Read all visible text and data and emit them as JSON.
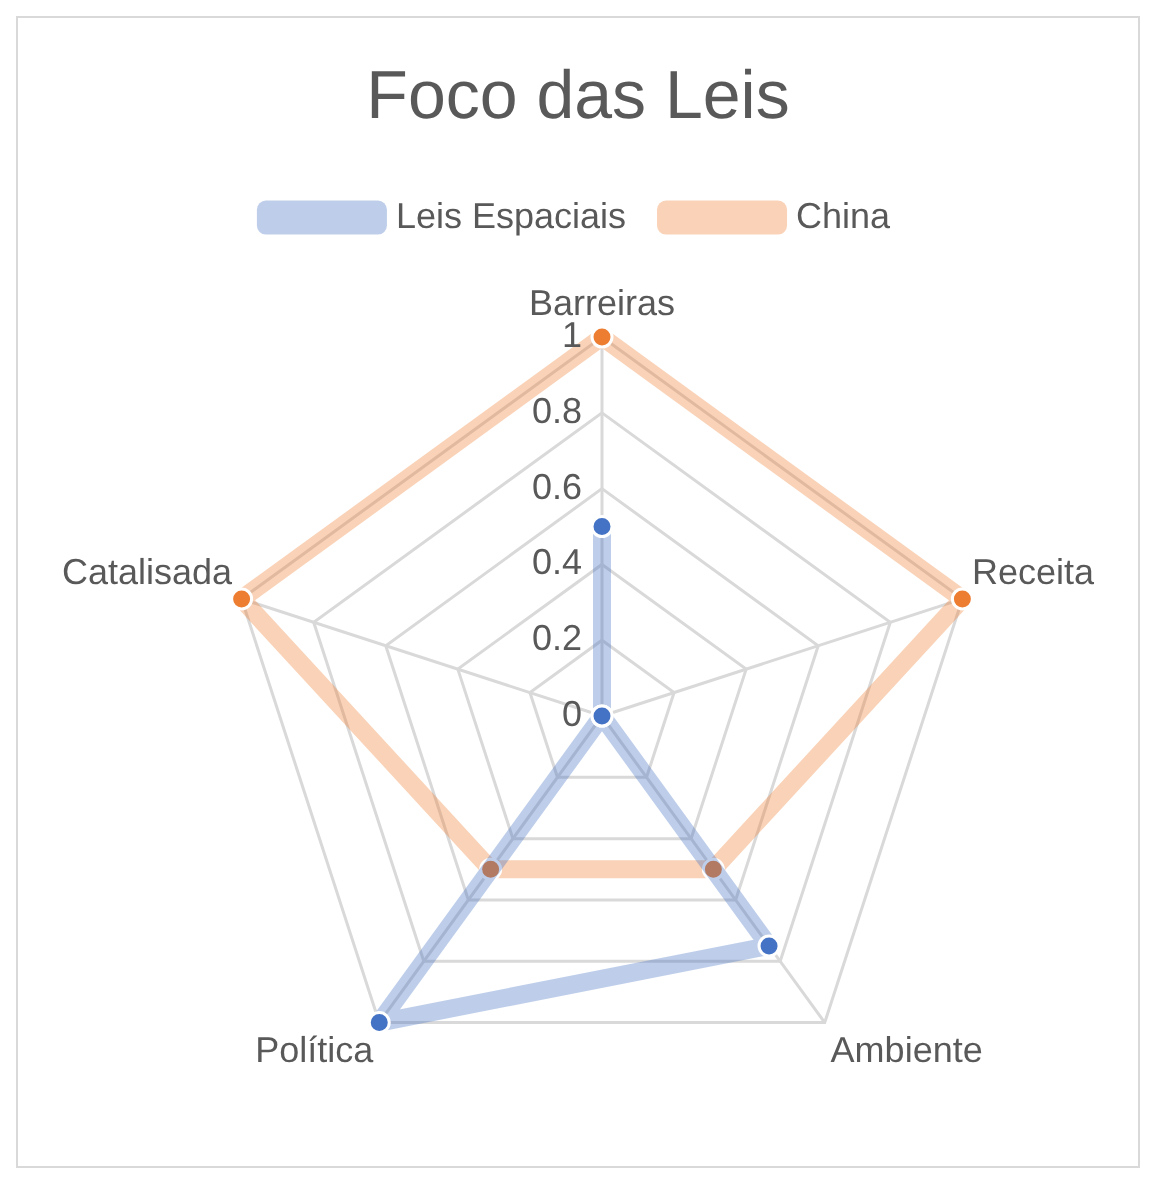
{
  "chart_data": {
    "type": "radar",
    "title": "Foco das Leis",
    "categories": [
      "Barreiras",
      "Receita",
      "Ambiente",
      "Política",
      "Catalisada"
    ],
    "series": [
      {
        "name": "Leis Espaciais",
        "color": "#4472c4",
        "values": [
          0.5,
          0,
          0.75,
          1,
          0
        ]
      },
      {
        "name": "China",
        "color": "#ed7d31",
        "values": [
          1,
          1,
          0.5,
          0.5,
          1
        ]
      }
    ],
    "ylim": [
      0,
      1
    ],
    "yticks": [
      0,
      0.2,
      0.4,
      0.6,
      0.8,
      1
    ],
    "grid": true,
    "legend": "top",
    "marker": "circle"
  }
}
